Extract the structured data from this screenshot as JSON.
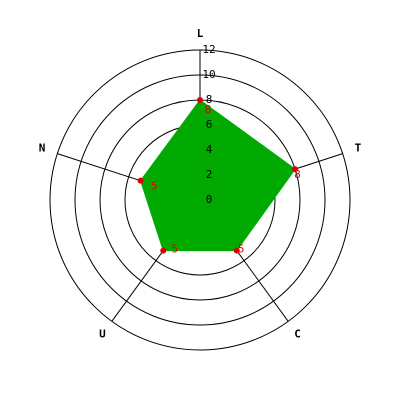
{
  "chart_data": {
    "type": "radar",
    "categories": [
      "L",
      "T",
      "C",
      "U",
      "N"
    ],
    "values": [
      8,
      8,
      5,
      5,
      5
    ],
    "color": "#00aa00",
    "marker_color": "#dd0000",
    "rlim": [
      0,
      12
    ],
    "rticks": [
      0,
      2,
      4,
      6,
      8,
      10,
      12
    ],
    "grid": true
  }
}
